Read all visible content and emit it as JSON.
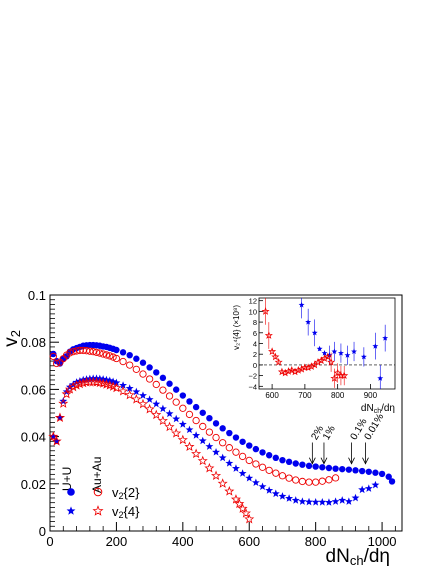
{
  "chart_data": [
    {
      "type": "scatter",
      "xlabel_main": "dN",
      "xlabel_sub": "ch",
      "xlabel_tail": "/dη",
      "ylabel_main": "v",
      "ylabel_sub": "2",
      "xlim": [
        0,
        1060
      ],
      "ylim": [
        0,
        0.1
      ],
      "x_ticks": [
        0,
        200,
        400,
        600,
        800,
        1000
      ],
      "x_tick_labels": [
        "0",
        "200",
        "400",
        "600",
        "800",
        "1000"
      ],
      "y_ticks": [
        0,
        0.02,
        0.04,
        0.06,
        0.08,
        0.1
      ],
      "y_tick_labels": [
        "0",
        "0.02",
        "0.04",
        "0.06",
        "0.08",
        "0.1"
      ],
      "legend": {
        "col1": "U+U",
        "col2": "Au+Au",
        "row1": {
          "main": "v",
          "sub": "2",
          "tail": "{2}"
        },
        "row2": {
          "main": "v",
          "sub": "2",
          "tail": "{4}"
        }
      },
      "annotations": [
        {
          "text": "2%",
          "x": 790
        },
        {
          "text": "1%",
          "x": 825
        },
        {
          "text": "0.1%",
          "x": 908
        },
        {
          "text": "0.01%",
          "x": 950
        }
      ],
      "series": [
        {
          "name": "v2{2} U+U",
          "color": "#0000ee",
          "marker": "filled-circle",
          "x": [
            10,
            20,
            30,
            40,
            50,
            60,
            70,
            80,
            90,
            100,
            110,
            120,
            130,
            140,
            150,
            160,
            170,
            180,
            190,
            200,
            220,
            240,
            260,
            280,
            300,
            320,
            340,
            360,
            380,
            400,
            420,
            440,
            460,
            480,
            500,
            520,
            540,
            560,
            580,
            600,
            620,
            640,
            660,
            680,
            700,
            720,
            740,
            760,
            780,
            800,
            820,
            840,
            860,
            880,
            900,
            920,
            940,
            960,
            980,
            1000,
            1020,
            1030
          ],
          "y": [
            0.075,
            0.072,
            0.071,
            0.073,
            0.074,
            0.076,
            0.077,
            0.0775,
            0.078,
            0.0785,
            0.0787,
            0.0788,
            0.0788,
            0.0787,
            0.0785,
            0.0782,
            0.078,
            0.0776,
            0.0772,
            0.0767,
            0.0757,
            0.0745,
            0.073,
            0.0713,
            0.0693,
            0.0672,
            0.0649,
            0.0624,
            0.0599,
            0.0574,
            0.0549,
            0.0525,
            0.0501,
            0.0478,
            0.0456,
            0.0435,
            0.0415,
            0.0396,
            0.0378,
            0.0362,
            0.0347,
            0.0333,
            0.0321,
            0.031,
            0.03,
            0.0293,
            0.0286,
            0.0281,
            0.0276,
            0.0273,
            0.027,
            0.0267,
            0.0264,
            0.0262,
            0.026,
            0.0257,
            0.0254,
            0.0251,
            0.0247,
            0.0242,
            0.023,
            0.021
          ]
        },
        {
          "name": "v2{2} Au+Au",
          "color": "#ee0000",
          "marker": "open-circle",
          "x": [
            10,
            20,
            30,
            40,
            50,
            60,
            70,
            80,
            90,
            100,
            110,
            120,
            130,
            140,
            150,
            160,
            170,
            180,
            190,
            200,
            220,
            240,
            260,
            280,
            300,
            320,
            340,
            360,
            380,
            400,
            420,
            440,
            460,
            480,
            500,
            520,
            540,
            560,
            580,
            600,
            620,
            640,
            660,
            680,
            700,
            720,
            740,
            760,
            780,
            800,
            820,
            840,
            860
          ],
          "y": [
            0.074,
            0.071,
            0.0715,
            0.073,
            0.0745,
            0.0755,
            0.076,
            0.0763,
            0.0765,
            0.0765,
            0.0764,
            0.0762,
            0.076,
            0.0757,
            0.0754,
            0.075,
            0.0746,
            0.0742,
            0.0737,
            0.0731,
            0.0718,
            0.0703,
            0.0685,
            0.0665,
            0.0644,
            0.0621,
            0.0597,
            0.0572,
            0.0546,
            0.052,
            0.0494,
            0.0468,
            0.0443,
            0.0419,
            0.0396,
            0.0374,
            0.0353,
            0.0334,
            0.0316,
            0.0299,
            0.0284,
            0.027,
            0.0257,
            0.0245,
            0.0234,
            0.0224,
            0.0216,
            0.021,
            0.0207,
            0.0207,
            0.0211,
            0.0217,
            0.0225
          ]
        },
        {
          "name": "v2{4} U+U",
          "color": "#0000ee",
          "marker": "filled-star",
          "x": [
            10,
            20,
            30,
            40,
            50,
            60,
            70,
            80,
            90,
            100,
            110,
            120,
            130,
            140,
            150,
            160,
            170,
            180,
            190,
            200,
            220,
            240,
            260,
            280,
            300,
            320,
            340,
            360,
            380,
            400,
            420,
            440,
            460,
            480,
            500,
            520,
            540,
            560,
            580,
            600,
            620,
            640,
            660,
            680,
            700,
            720,
            740,
            760,
            780,
            800,
            820,
            840,
            860,
            880,
            900,
            920,
            940,
            960,
            980
          ],
          "y": [
            0.04,
            0.038,
            0.048,
            0.055,
            0.059,
            0.061,
            0.062,
            0.063,
            0.0635,
            0.064,
            0.0643,
            0.0645,
            0.0646,
            0.0646,
            0.0645,
            0.0643,
            0.064,
            0.0637,
            0.0633,
            0.0628,
            0.0617,
            0.0604,
            0.059,
            0.0574,
            0.0557,
            0.0538,
            0.0518,
            0.0497,
            0.0475,
            0.0452,
            0.0429,
            0.0405,
            0.0382,
            0.0358,
            0.0334,
            0.031,
            0.0287,
            0.0265,
            0.0244,
            0.0224,
            0.0205,
            0.0188,
            0.0172,
            0.0158,
            0.0147,
            0.0138,
            0.013,
            0.0125,
            0.0123,
            0.0122,
            0.0122,
            0.0121,
            0.0125,
            0.013,
            0.0125,
            0.014,
            0.0175,
            0.018,
            0.0195
          ]
        },
        {
          "name": "v2{4} Au+Au",
          "color": "#ee0000",
          "marker": "open-star",
          "x": [
            10,
            20,
            30,
            40,
            50,
            60,
            70,
            80,
            90,
            100,
            110,
            120,
            130,
            140,
            150,
            160,
            170,
            180,
            190,
            200,
            220,
            240,
            260,
            280,
            300,
            320,
            340,
            360,
            380,
            400,
            420,
            440,
            460,
            480,
            500,
            520,
            540,
            560,
            570,
            580,
            590,
            600
          ],
          "y": [
            0.04,
            0.038,
            0.048,
            0.054,
            0.058,
            0.06,
            0.061,
            0.0617,
            0.0623,
            0.0627,
            0.063,
            0.0631,
            0.0631,
            0.063,
            0.0628,
            0.0625,
            0.0621,
            0.0617,
            0.0612,
            0.0606,
            0.0592,
            0.0576,
            0.0558,
            0.0538,
            0.0516,
            0.0492,
            0.0467,
            0.0441,
            0.0414,
            0.0386,
            0.0357,
            0.0327,
            0.0297,
            0.0266,
            0.0234,
            0.0201,
            0.0168,
            0.0134,
            0.0115,
            0.0095,
            0.0075,
            0.005
          ]
        }
      ]
    },
    {
      "type": "scatter",
      "ylabel": "v₂⁴{4} (×10⁸)",
      "xlabel_main": "dN",
      "xlabel_sub": "ch",
      "xlabel_tail": "/dη",
      "xlim": [
        560,
        975
      ],
      "ylim": [
        -4.5,
        12.5
      ],
      "x_ticks": [
        600,
        700,
        800,
        900
      ],
      "x_tick_labels": [
        "600",
        "700",
        "800",
        "900"
      ],
      "y_ticks": [
        -4,
        -2,
        0,
        2,
        4,
        6,
        8,
        10,
        12
      ],
      "y_tick_labels": [
        "−4",
        "−2",
        "0",
        "2",
        "4",
        "6",
        "8",
        "10",
        "12"
      ],
      "dashed_line_y": 0,
      "series": [
        {
          "name": "U+U",
          "color": "#0000ee",
          "marker": "filled-star",
          "x": [
            690,
            710,
            730,
            745,
            760,
            775,
            790,
            810,
            830,
            850,
            880,
            915,
            930,
            945
          ],
          "y": [
            11.2,
            8,
            6,
            3,
            2.2,
            1.8,
            2.5,
            2.2,
            1.8,
            2.5,
            1.5,
            3.5,
            -2.5,
            5
          ]
        },
        {
          "name": "Au+Au",
          "color": "#ee0000",
          "marker": "open-star",
          "x": [
            580,
            590,
            600,
            610,
            620,
            630,
            640,
            650,
            660,
            670,
            680,
            690,
            700,
            710,
            720,
            730,
            740,
            750,
            760,
            770,
            780,
            790,
            800,
            810,
            820
          ],
          "y": [
            10,
            5.5,
            2.5,
            1.5,
            0.5,
            -1.3,
            -1.5,
            -1.2,
            -1.0,
            -1.3,
            -1.0,
            -0.8,
            -0.5,
            -0.5,
            -0.3,
            0,
            0.5,
            0.8,
            1.2,
            1.5,
            0.5,
            -2.5,
            -1.5,
            -2.0,
            -2.0
          ]
        }
      ]
    }
  ]
}
